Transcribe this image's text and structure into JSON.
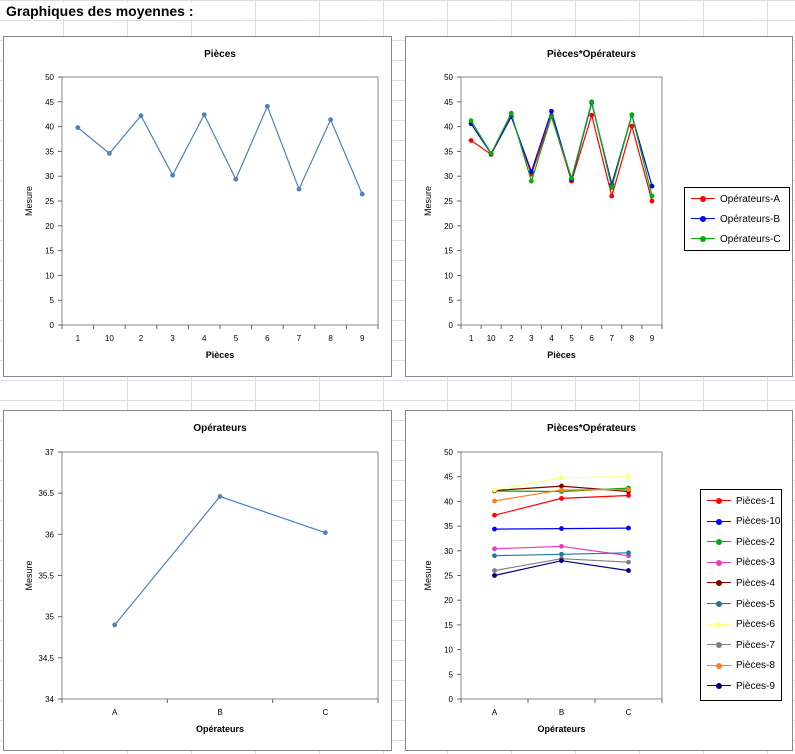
{
  "page": {
    "title": "Graphiques des moyennes :"
  },
  "chart_data": [
    {
      "id": "pieces",
      "type": "line",
      "title": "Pièces",
      "xlabel": "Pièces",
      "ylabel": "Mesure",
      "categories": [
        "1",
        "10",
        "2",
        "3",
        "4",
        "5",
        "6",
        "7",
        "8",
        "9"
      ],
      "ylim": [
        0,
        50
      ],
      "yticks": [
        0,
        5,
        10,
        15,
        20,
        25,
        30,
        35,
        40,
        45,
        50
      ],
      "series": [
        {
          "name": "Pièces",
          "color": "#4f81bd",
          "values": [
            39.8,
            34.6,
            42.2,
            30.2,
            42.4,
            29.4,
            44.1,
            27.4,
            41.4,
            26.4
          ]
        }
      ]
    },
    {
      "id": "pieces-operateurs",
      "type": "line",
      "title": "Pièces*Opérateurs",
      "xlabel": "Pièces",
      "ylabel": "Mesure",
      "categories": [
        "1",
        "10",
        "2",
        "3",
        "4",
        "5",
        "6",
        "7",
        "8",
        "9"
      ],
      "ylim": [
        0,
        50
      ],
      "yticks": [
        0,
        5,
        10,
        15,
        20,
        25,
        30,
        35,
        40,
        45,
        50
      ],
      "series": [
        {
          "name": "Opérateurs-A",
          "color": "#ff0000",
          "values": [
            37.2,
            34.4,
            42.1,
            30.4,
            42.2,
            29.0,
            42.3,
            26.0,
            40.1,
            25.0
          ]
        },
        {
          "name": "Opérateurs-B",
          "color": "#0000ff",
          "values": [
            40.6,
            34.5,
            42.0,
            30.9,
            43.1,
            29.3,
            44.8,
            28.4,
            42.3,
            28.0
          ]
        },
        {
          "name": "Opérateurs-C",
          "color": "#00b000",
          "values": [
            41.2,
            34.6,
            42.7,
            29.0,
            42.0,
            29.6,
            45.0,
            27.7,
            42.4,
            26.0
          ]
        }
      ]
    },
    {
      "id": "operateurs",
      "type": "line",
      "title": "Opérateurs",
      "xlabel": "Opérateurs",
      "ylabel": "Mesure",
      "categories": [
        "A",
        "B",
        "C"
      ],
      "ylim": [
        34,
        37
      ],
      "yticks": [
        34,
        34.5,
        35,
        35.5,
        36,
        36.5,
        37
      ],
      "series": [
        {
          "name": "Opérateurs",
          "color": "#4f81bd",
          "values": [
            34.9,
            36.46,
            36.02
          ]
        }
      ]
    },
    {
      "id": "pieces-operateurs-2",
      "type": "line",
      "title": "Pièces*Opérateurs",
      "xlabel": "Opérateurs",
      "ylabel": "Mesure",
      "categories": [
        "A",
        "B",
        "C"
      ],
      "ylim": [
        0,
        50
      ],
      "yticks": [
        0,
        5,
        10,
        15,
        20,
        25,
        30,
        35,
        40,
        45,
        50
      ],
      "series": [
        {
          "name": "Pièces-1",
          "color": "#ff0000",
          "values": [
            37.2,
            40.6,
            41.2
          ]
        },
        {
          "name": "Pièces-10",
          "color": "#0000ff",
          "values": [
            34.4,
            34.5,
            34.6
          ]
        },
        {
          "name": "Pièces-2",
          "color": "#00b000",
          "values": [
            42.1,
            42.0,
            42.7
          ]
        },
        {
          "name": "Pièces-3",
          "color": "#e040c0",
          "values": [
            30.4,
            30.9,
            29.0
          ]
        },
        {
          "name": "Pièces-4",
          "color": "#800000",
          "values": [
            42.2,
            43.1,
            42.0
          ]
        },
        {
          "name": "Pièces-5",
          "color": "#1f7a9e",
          "values": [
            29.0,
            29.3,
            29.6
          ]
        },
        {
          "name": "Pièces-6",
          "color": "#ffff80",
          "values": [
            42.3,
            44.8,
            45.0
          ]
        },
        {
          "name": "Pièces-7",
          "color": "#808080",
          "values": [
            26.0,
            28.4,
            27.7
          ]
        },
        {
          "name": "Pièces-8",
          "color": "#ff7f1f",
          "values": [
            40.1,
            42.3,
            42.4
          ]
        },
        {
          "name": "Pièces-9",
          "color": "#000080",
          "values": [
            25.0,
            28.0,
            26.0
          ]
        }
      ]
    }
  ]
}
